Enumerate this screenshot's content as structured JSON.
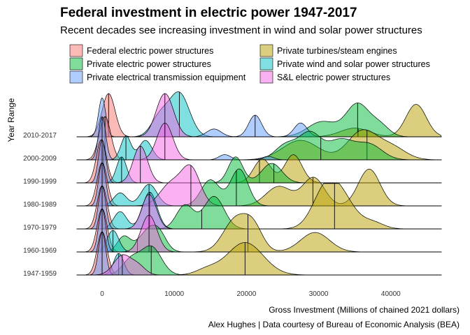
{
  "chart_data": {
    "type": "ridgeline",
    "title": "Federal investment in electric power 1947-2017",
    "subtitle": "Recent decades see increasing investment in wind and solar power structures",
    "xlabel": "Gross Investment (Millions of chained 2021 dollars)",
    "ylabel": "Year Range",
    "caption": "Alex Hughes | Data courtesy of Bureau of Economic Analysis (BEA)",
    "xlim": [
      -3500,
      47000
    ],
    "x_ticks": [
      0,
      10000,
      20000,
      30000,
      40000
    ],
    "x_tick_labels": [
      "0",
      "10000",
      "20000",
      "30000",
      "40000"
    ],
    "categories": [
      "1947-1959",
      "1960-1969",
      "1970-1979",
      "1980-1989",
      "1990-1999",
      "2000-2009",
      "2010-2017"
    ],
    "legend_position": "top",
    "legend": [
      "Federal electric power structures",
      "Private turbines/steam engines",
      "Private electric power structures",
      "Private wind and solar power structures",
      "Private electrical transmission equipment",
      "S&L electric power structures"
    ],
    "series": [
      {
        "name": "Federal electric power structures",
        "color": "#f8766d",
        "medians": [
          0,
          0,
          0,
          0,
          200,
          400,
          900
        ],
        "peaks": [
          [
            [
              0,
              1.0,
              700
            ]
          ],
          [
            [
              0,
              1.0,
              700
            ]
          ],
          [
            [
              0,
              1.0,
              700
            ]
          ],
          [
            [
              0,
              1.0,
              700
            ]
          ],
          [
            [
              -100,
              1.0,
              700
            ]
          ],
          [
            [
              400,
              1.0,
              800
            ]
          ],
          [
            [
              900,
              1.0,
              900
            ]
          ]
        ]
      },
      {
        "name": "Private electric power structures",
        "color": "#b79f00",
        "medians": [
          19800,
          20200,
          32200,
          29200,
          21800,
          36700,
          35500
        ],
        "peaks": [
          [
            [
              14500,
              0.12,
              1500
            ],
            [
              19800,
              0.75,
              2500
            ]
          ],
          [
            [
              18500,
              0.75,
              1700
            ],
            [
              21000,
              0.5,
              1300
            ],
            [
              29500,
              0.45,
              2000
            ]
          ],
          [
            [
              31000,
              0.9,
              1800
            ],
            [
              33500,
              0.55,
              1800
            ],
            [
              37500,
              0.15,
              1500
            ]
          ],
          [
            [
              24500,
              0.45,
              1800
            ],
            [
              29300,
              0.65,
              1500
            ],
            [
              37000,
              0.85,
              1500
            ]
          ],
          [
            [
              22200,
              0.55,
              1200
            ],
            [
              26500,
              0.65,
              1200
            ]
          ],
          [
            [
              27500,
              0.45,
              2500
            ],
            [
              36000,
              0.65,
              2000
            ],
            [
              40000,
              0.3,
              2000
            ]
          ],
          [
            [
              35000,
              0.2,
              2000
            ],
            [
              43500,
              0.75,
              1400
            ]
          ]
        ]
      },
      {
        "name": "Private electrical transmission equipment",
        "color": "#00ba38",
        "medians": [
          6800,
          4900,
          13800,
          18600,
          23800,
          30300,
          35400
        ],
        "peaks": [
          [
            [
              4000,
              0.35,
              1200
            ],
            [
              6800,
              0.65,
              1400
            ]
          ],
          [
            [
              3000,
              0.35,
              900
            ],
            [
              6500,
              0.5,
              1400
            ],
            [
              8000,
              0.25,
              1000
            ]
          ],
          [
            [
              11500,
              0.55,
              1200
            ],
            [
              15500,
              0.75,
              1400
            ]
          ],
          [
            [
              15000,
              0.6,
              1300
            ],
            [
              19000,
              0.85,
              1200
            ]
          ],
          [
            [
              18500,
              0.6,
              1000
            ],
            [
              23500,
              0.45,
              1400
            ]
          ],
          [
            [
              25500,
              0.35,
              1500
            ],
            [
              28800,
              0.6,
              1500
            ],
            [
              33000,
              0.45,
              1800
            ],
            [
              37000,
              0.35,
              1800
            ]
          ],
          [
            [
              30500,
              0.35,
              2000
            ],
            [
              35400,
              0.75,
              1600
            ],
            [
              38500,
              0.25,
              1300
            ]
          ]
        ]
      },
      {
        "name": "Private turbines/steam engines",
        "color": "#00bfc4",
        "medians": [
          2300,
          1500,
          6600,
          6500,
          2700,
          3300,
          10700
        ],
        "peaks": [
          [
            [
              2300,
              0.5,
              700
            ]
          ],
          [
            [
              1500,
              0.5,
              800
            ]
          ],
          [
            [
              2500,
              0.4,
              900
            ],
            [
              6600,
              0.85,
              1000
            ]
          ],
          [
            [
              2500,
              0.3,
              900
            ],
            [
              6500,
              0.5,
              1100
            ]
          ],
          [
            [
              2700,
              0.6,
              700
            ]
          ],
          [
            [
              3300,
              0.55,
              700
            ],
            [
              6000,
              0.45,
              900
            ]
          ],
          [
            [
              8000,
              0.45,
              1200
            ],
            [
              10700,
              1.0,
              1400
            ]
          ]
        ]
      },
      {
        "name": "Private wind and solar power structures",
        "color": "#619cff",
        "medians": [
          0,
          0,
          0,
          0,
          0,
          0,
          21200
        ],
        "peaks": [
          [
            [
              0,
              1.0,
              500
            ]
          ],
          [
            [
              0,
              1.0,
              500
            ]
          ],
          [
            [
              0,
              1.0,
              500
            ]
          ],
          [
            [
              0,
              1.0,
              500
            ]
          ],
          [
            [
              0,
              1.0,
              500
            ]
          ],
          [
            [
              0,
              1.0,
              500
            ],
            [
              17000,
              0.12,
              800
            ],
            [
              23000,
              0.08,
              800
            ]
          ],
          [
            [
              0,
              0.9,
              500
            ],
            [
              15500,
              0.18,
              1000
            ],
            [
              21200,
              0.5,
              900
            ],
            [
              27500,
              0.32,
              900
            ]
          ]
        ]
      },
      {
        "name": "S&L electric power structures",
        "color": "#f564e3",
        "medians": [
          2800,
          6500,
          6500,
          12300,
          5300,
          8700,
          8700
        ],
        "peaks": [
          [
            [
              2800,
              0.45,
              1200
            ],
            [
              5000,
              0.2,
              1000
            ]
          ],
          [
            [
              6500,
              0.85,
              1100
            ]
          ],
          [
            [
              6500,
              0.8,
              1000
            ]
          ],
          [
            [
              9500,
              0.5,
              1500
            ],
            [
              12300,
              0.85,
              1300
            ]
          ],
          [
            [
              5300,
              0.85,
              1000
            ]
          ],
          [
            [
              8700,
              0.85,
              1100
            ]
          ],
          [
            [
              8700,
              1.0,
              1200
            ]
          ]
        ]
      }
    ]
  }
}
